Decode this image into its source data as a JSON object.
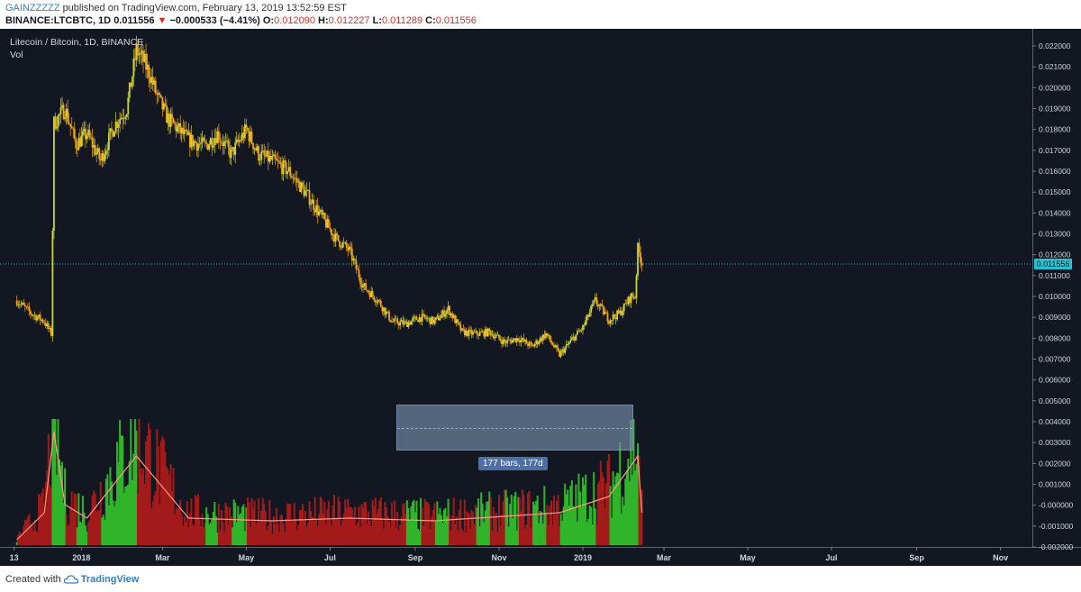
{
  "header": {
    "publisher": "GAINZZZZZ",
    "published_text": "published on TradingView.com, February 13, 2019 13:52:59 EST",
    "symbol": "BINANCE:LTCBTC, 1D",
    "last": "0.011556",
    "change": "−0.000533 (−4.41%)",
    "o_label": "O:",
    "o_value": "0.012090",
    "h_label": "H:",
    "h_value": "0.012227",
    "l_label": "L:",
    "l_value": "0.011289",
    "c_label": "C:",
    "c_value": "0.011556"
  },
  "legend": {
    "title": "Litecoin / Bitcoin, 1D, BINANCE",
    "volume_label": "Vol"
  },
  "measure": {
    "label": "177 bars, 177d",
    "bar_count": 177
  },
  "footer": {
    "created_with": "Created with",
    "brand": "TradingView"
  },
  "colors": {
    "background": "#131722",
    "candle": "#f7a21b",
    "up_highlight": "#c6d63a",
    "vol_up": "#30b52a",
    "vol_down": "#a31a1a",
    "vol_ma": "#ff9a80",
    "price_line": "#27c2cf"
  },
  "chart_data": {
    "type": "candlestick",
    "title": "Litecoin / Bitcoin, 1D, BINANCE",
    "x_ticks": [
      "13",
      "2018",
      "Mar",
      "May",
      "Jul",
      "Sep",
      "Nov",
      "2019",
      "Mar",
      "May",
      "Jul",
      "Sep",
      "Nov"
    ],
    "y_ticks": [
      "0.022000",
      "0.021000",
      "0.020000",
      "0.019000",
      "0.018000",
      "0.017000",
      "0.016000",
      "0.015000",
      "0.014000",
      "0.013000",
      "0.012000",
      "0.011000",
      "0.010000",
      "0.009000",
      "0.008000",
      "0.007000",
      "0.006000",
      "0.005000",
      "0.004000",
      "0.003000",
      "0.002000",
      "0.001000",
      "-0.000000",
      "-0.001000",
      "-0.002000"
    ],
    "ylim": [
      -0.0021,
      0.0225
    ],
    "last_price": "0.011556",
    "series": [
      {
        "name": "LTCBTC",
        "x": [
          "2017-11-15",
          "2017-11-25",
          "2017-12-05",
          "2017-12-10",
          "2017-12-12",
          "2017-12-20",
          "2017-12-28",
          "2018-01-05",
          "2018-01-15",
          "2018-01-25",
          "2018-02-03",
          "2018-02-10",
          "2018-02-15",
          "2018-02-20",
          "2018-02-25",
          "2018-03-05",
          "2018-03-20",
          "2018-04-01",
          "2018-04-10",
          "2018-04-20",
          "2018-05-01",
          "2018-05-10",
          "2018-05-20",
          "2018-06-01",
          "2018-06-15",
          "2018-06-25",
          "2018-07-05",
          "2018-07-15",
          "2018-07-25",
          "2018-08-05",
          "2018-08-15",
          "2018-08-25",
          "2018-09-05",
          "2018-09-15",
          "2018-09-25",
          "2018-10-05",
          "2018-10-15",
          "2018-10-25",
          "2018-11-05",
          "2018-11-15",
          "2018-11-25",
          "2018-12-05",
          "2018-12-15",
          "2018-12-25",
          "2019-01-01",
          "2019-01-10",
          "2019-01-20",
          "2019-01-28",
          "2019-02-05",
          "2019-02-08",
          "2019-02-10",
          "2019-02-13"
        ],
        "close": [
          0.0098,
          0.0092,
          0.0088,
          0.0082,
          0.0183,
          0.019,
          0.0173,
          0.0178,
          0.0165,
          0.0182,
          0.019,
          0.0218,
          0.0213,
          0.0206,
          0.0196,
          0.0185,
          0.0175,
          0.0172,
          0.0178,
          0.0168,
          0.018,
          0.0168,
          0.0165,
          0.016,
          0.0148,
          0.0138,
          0.0128,
          0.0122,
          0.0105,
          0.0098,
          0.0088,
          0.0087,
          0.009,
          0.0088,
          0.0094,
          0.0083,
          0.0082,
          0.0083,
          0.0078,
          0.008,
          0.0076,
          0.0082,
          0.0072,
          0.008,
          0.0085,
          0.0098,
          0.0089,
          0.0092,
          0.01,
          0.01,
          0.0123,
          0.0116
        ]
      },
      {
        "name": "Vol",
        "x": [
          "2017-11-15",
          "2017-12-05",
          "2017-12-12",
          "2017-12-20",
          "2018-01-05",
          "2018-02-10",
          "2018-03-20",
          "2018-05-20",
          "2018-07-15",
          "2018-09-15",
          "2018-11-15",
          "2018-12-15",
          "2019-01-20",
          "2019-02-10",
          "2019-02-13"
        ],
        "values": [
          0.0002,
          0.0012,
          0.0042,
          0.0015,
          0.001,
          0.0033,
          0.001,
          0.0009,
          0.001,
          0.0009,
          0.0011,
          0.0012,
          0.0018,
          0.0033,
          0.0012
        ]
      }
    ],
    "grid": false,
    "legend_position": "top-left"
  }
}
